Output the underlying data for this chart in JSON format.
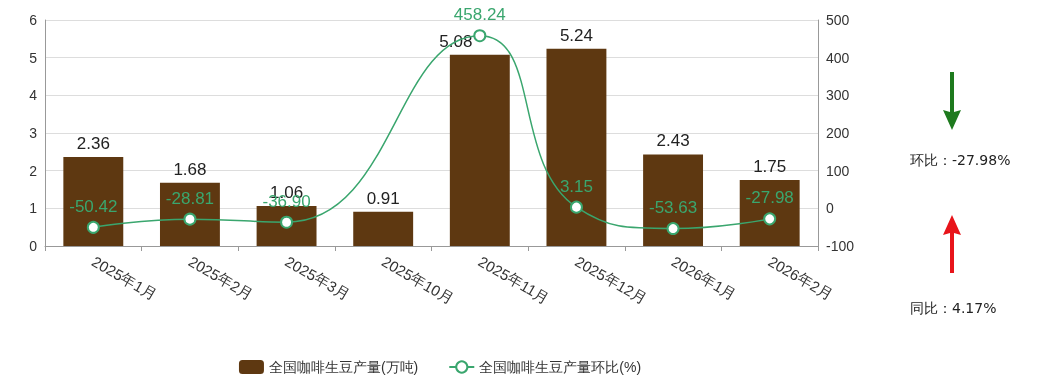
{
  "chart_data": {
    "type": "bar",
    "categories": [
      "2025年1月",
      "2025年2月",
      "2025年3月",
      "2025年10月",
      "2025年11月",
      "2025年12月",
      "2026年1月",
      "2026年2月"
    ],
    "series": [
      {
        "name": "全国咖啡生豆产量(万吨)",
        "color": "#5e3811",
        "values": [
          2.36,
          1.68,
          1.06,
          0.91,
          5.08,
          5.24,
          2.43,
          1.75
        ],
        "value_labels": [
          "2.36",
          "1.68",
          "1.06",
          "0.91",
          "5.08",
          "5.24",
          "2.43",
          "1.75"
        ]
      },
      {
        "name": "全国咖啡生豆产量环比(%)",
        "type": "line",
        "axis": "y2",
        "color": "#3aa66e",
        "values": [
          -50.42,
          -28.81,
          -36.9,
          null,
          458.24,
          3.15,
          -53.63,
          -27.98
        ],
        "value_labels": [
          "-50.42",
          "-28.81",
          "-36.90",
          null,
          "458.24",
          "3.15",
          "-53.63",
          "-27.98"
        ]
      }
    ],
    "ylim": [
      0,
      6
    ],
    "yticks": [
      0,
      1,
      2,
      3,
      4,
      5,
      6
    ],
    "y2lim": [
      -100,
      500
    ],
    "y2ticks": [
      -100,
      0,
      100,
      200,
      300,
      400,
      500
    ],
    "grid": "y",
    "legend": "bottom",
    "marker": "circle",
    "line_style": "solid",
    "annotations": [
      "环比：-27.98%",
      "同比：4.17%"
    ]
  }
}
